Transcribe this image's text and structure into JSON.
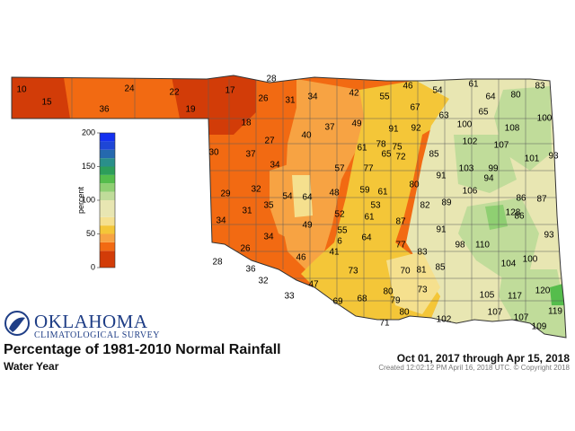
{
  "header": {
    "title": "Percentage of 1981-2010 Normal Rainfall",
    "subtitle": "Water Year",
    "period": "Oct 01, 2017 through Apr 15, 2018",
    "created": "Created 12:02:12 PM April 16, 2018 UTC. © Copyright 2018"
  },
  "logo": {
    "line1": "OKLAHOMA",
    "line2": "CLIMATOLOGICAL SURVEY"
  },
  "legend": {
    "axis_label": "percent",
    "ticks": [
      "0",
      "50",
      "100",
      "150",
      "200"
    ],
    "bands": [
      {
        "from": 0,
        "to": 25,
        "color": "#d23c08"
      },
      {
        "from": 25,
        "to": 37.5,
        "color": "#f26a12"
      },
      {
        "from": 37.5,
        "to": 50,
        "color": "#f7a343"
      },
      {
        "from": 50,
        "to": 62.5,
        "color": "#f4c638"
      },
      {
        "from": 62.5,
        "to": 75,
        "color": "#f5e08e"
      },
      {
        "from": 75,
        "to": 100,
        "color": "#e8e6b2"
      },
      {
        "from": 100,
        "to": 112.5,
        "color": "#c0dc9a"
      },
      {
        "from": 112.5,
        "to": 125,
        "color": "#8fcf72"
      },
      {
        "from": 125,
        "to": 137.5,
        "color": "#55bd4c"
      },
      {
        "from": 137.5,
        "to": 150,
        "color": "#2d9e5a"
      },
      {
        "from": 150,
        "to": 162.5,
        "color": "#2a8f8a"
      },
      {
        "from": 162.5,
        "to": 175,
        "color": "#2569ae"
      },
      {
        "from": 175,
        "to": 187.5,
        "color": "#1e46d6"
      },
      {
        "from": 187.5,
        "to": 200,
        "color": "#1330f0"
      }
    ]
  },
  "values": [
    "10",
    "15",
    "36",
    "24",
    "22",
    "19",
    "17",
    "28",
    "26",
    "31",
    "34",
    "42",
    "55",
    "46",
    "54",
    "61",
    "64",
    "80",
    "83",
    "67",
    "63",
    "100",
    "65",
    "100",
    "18",
    "27",
    "40",
    "37",
    "49",
    "91",
    "92",
    "108",
    "102",
    "107",
    "30",
    "37",
    "34",
    "61",
    "78",
    "75",
    "65",
    "72",
    "85",
    "103",
    "99",
    "101",
    "93",
    "57",
    "77",
    "91",
    "94",
    "80",
    "29",
    "32",
    "54",
    "64",
    "48",
    "59",
    "61",
    "106",
    "86",
    "87",
    "35",
    "31",
    "53",
    "89",
    "82",
    "128",
    "86",
    "34",
    "52",
    "61",
    "49",
    "87",
    "91",
    "55",
    "6",
    "64",
    "26",
    "34",
    "98",
    "110",
    "93",
    "41",
    "77",
    "83",
    "28",
    "36",
    "46",
    "104",
    "100",
    "85",
    "70",
    "81",
    "32",
    "47",
    "73",
    "80",
    "73",
    "120",
    "69",
    "68",
    "79",
    "105",
    "117",
    "33",
    "80",
    "71",
    "102",
    "107",
    "107",
    "119",
    "109"
  ]
}
